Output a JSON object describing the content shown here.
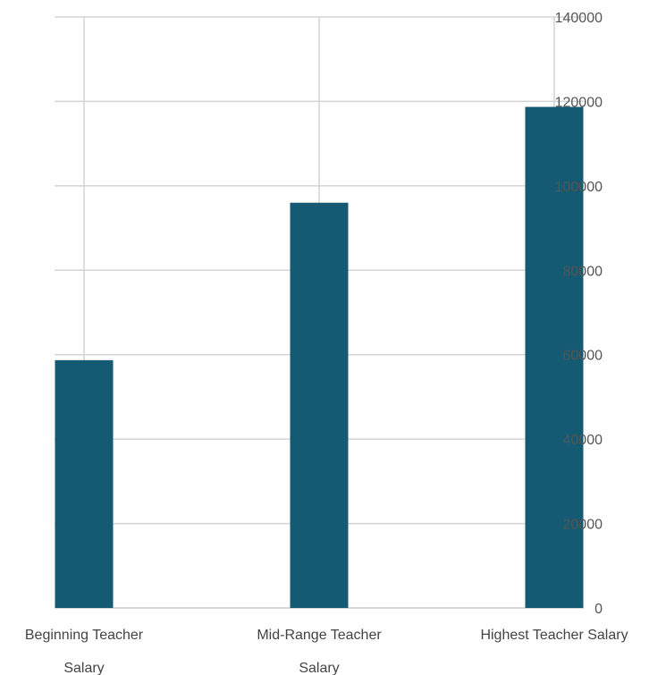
{
  "chart_data": {
    "type": "bar",
    "title": "",
    "xlabel": "",
    "ylabel": "",
    "categories": [
      [
        "Beginning Teacher",
        "Salary"
      ],
      [
        "Mid-Range Teacher",
        "Salary"
      ],
      [
        "Highest Teacher Salary"
      ]
    ],
    "values": [
      58700,
      96000,
      118700
    ],
    "ylim": [
      0,
      140000
    ],
    "yticks": [
      "0",
      "20000",
      "40000",
      "60000",
      "80000",
      "100000",
      "120000",
      "140000"
    ],
    "grid": true,
    "y_axis_side": "right",
    "legend": "none",
    "bar_color": "#135a72",
    "grid_color": "#d4d4d4"
  }
}
